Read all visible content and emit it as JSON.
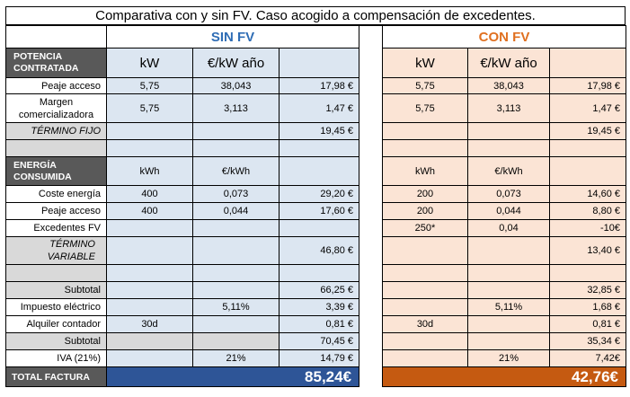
{
  "title": "Comparativa con y sin FV. Caso acogido a compensación de excedentes.",
  "sin_fv": {
    "header": "SIN FV",
    "potencia_units": [
      "kW",
      "€/kW año"
    ],
    "potencia_rows": [
      {
        "kw": "5,75",
        "price": "38,043",
        "amount": "17,98 €"
      },
      {
        "kw": "5,75",
        "price": "3,113",
        "amount": "1,47 €"
      }
    ],
    "termino_fijo": "19,45 €",
    "energia_units": [
      "kWh",
      "€/kWh"
    ],
    "energia_rows": [
      {
        "qty": "400",
        "price": "0,073",
        "amount": "29,20 €"
      },
      {
        "qty": "400",
        "price": "0,044",
        "amount": "17,60 €"
      },
      {
        "qty": "",
        "price": "",
        "amount": ""
      }
    ],
    "termino_variable": "46,80 €",
    "subtotal": "66,25 €",
    "impuesto": {
      "rate": "5,11%",
      "amount": "3,39 €"
    },
    "alquiler": {
      "days": "30d",
      "amount": "0,81 €"
    },
    "subtotal2": "70,45 €",
    "iva": {
      "rate": "21%",
      "amount": "14,79 €"
    },
    "total": "85,24€"
  },
  "con_fv": {
    "header": "CON FV",
    "potencia_units": [
      "kW",
      "€/kW año"
    ],
    "potencia_rows": [
      {
        "kw": "5,75",
        "price": "38,043",
        "amount": "17,98 €"
      },
      {
        "kw": "5,75",
        "price": "3,113",
        "amount": "1,47 €"
      }
    ],
    "termino_fijo": "19,45 €",
    "energia_units": [
      "kWh",
      "€/kWh"
    ],
    "energia_rows": [
      {
        "qty": "200",
        "price": "0,073",
        "amount": "14,60 €"
      },
      {
        "qty": "200",
        "price": "0,044",
        "amount": "8,80 €"
      },
      {
        "qty": "250*",
        "price": "0,04",
        "amount": "-10€"
      }
    ],
    "termino_variable": "13,40 €",
    "subtotal": "32,85 €",
    "impuesto": {
      "rate": "5,11%",
      "amount": "1,68 €"
    },
    "alquiler": {
      "days": "30d",
      "amount": "0,81 €"
    },
    "subtotal2": "35,34 €",
    "iva": {
      "rate": "21%",
      "amount": "7,42€"
    },
    "total": "42,76€"
  },
  "labels": {
    "potencia": "POTENCIA CONTRATADA",
    "peaje_acceso": "Peaje acceso",
    "margen": "Margen comercializadora",
    "termino_fijo": "TÉRMINO FIJO",
    "energia": "ENERGÍA CONSUMIDA",
    "coste_energia": "Coste energía",
    "peaje_acceso_2": "Peaje acceso",
    "excedentes": "Excedentes FV",
    "termino_variable": "TÉRMINO VARIABLE",
    "subtotal": "Subtotal",
    "impuesto": "Impuesto eléctrico",
    "alquiler": "Alquiler contador",
    "subtotal2": "Subtotal",
    "iva": "IVA (21%)",
    "total": "TOTAL FACTURA"
  }
}
